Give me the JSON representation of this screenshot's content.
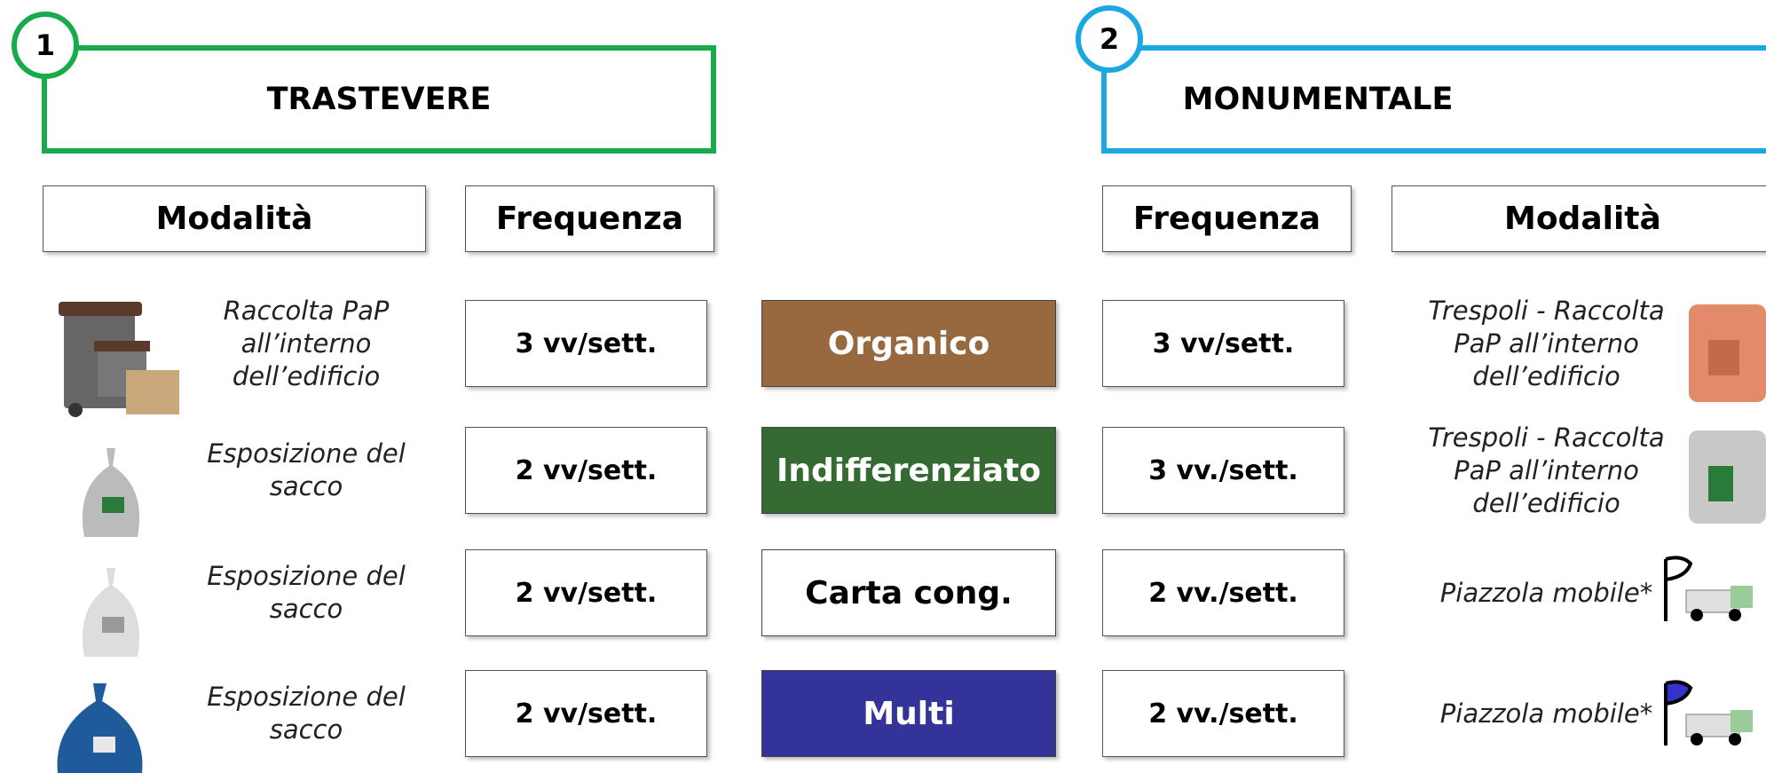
{
  "zones": [
    {
      "number": "1",
      "name": "TRASTEVERE",
      "headers": {
        "modalita": "Modalità",
        "frequenza": "Frequenza"
      }
    },
    {
      "number": "2",
      "name": "MONUMENTALE",
      "headers": {
        "frequenza": "Frequenza",
        "modalita": "Modalità"
      }
    }
  ],
  "rows": [
    {
      "category": "Organico",
      "left": {
        "modalita": "Raccolta PaP all’interno dell’edificio",
        "frequenza": "3 vv/sett."
      },
      "right": {
        "frequenza": "3 vv/sett.",
        "modalita": "Trespoli - Raccolta PaP all’interno dell’edificio"
      }
    },
    {
      "category": "Indifferenziato",
      "left": {
        "modalita": "Esposizione del sacco",
        "frequenza": "2 vv/sett."
      },
      "right": {
        "frequenza": "3 vv./sett.",
        "modalita": "Trespoli - Raccolta PaP all’interno dell’edificio"
      }
    },
    {
      "category": "Carta cong.",
      "left": {
        "modalita": "Esposizione del sacco",
        "frequenza": "2 vv/sett."
      },
      "right": {
        "frequenza": "2 vv./sett.",
        "modalita": "Piazzola mobile*"
      }
    },
    {
      "category": "Multi",
      "left": {
        "modalita": "Esposizione del sacco",
        "frequenza": "2 vv/sett."
      },
      "right": {
        "frequenza": "2 vv./sett.",
        "modalita": "Piazzola mobile*"
      }
    }
  ]
}
